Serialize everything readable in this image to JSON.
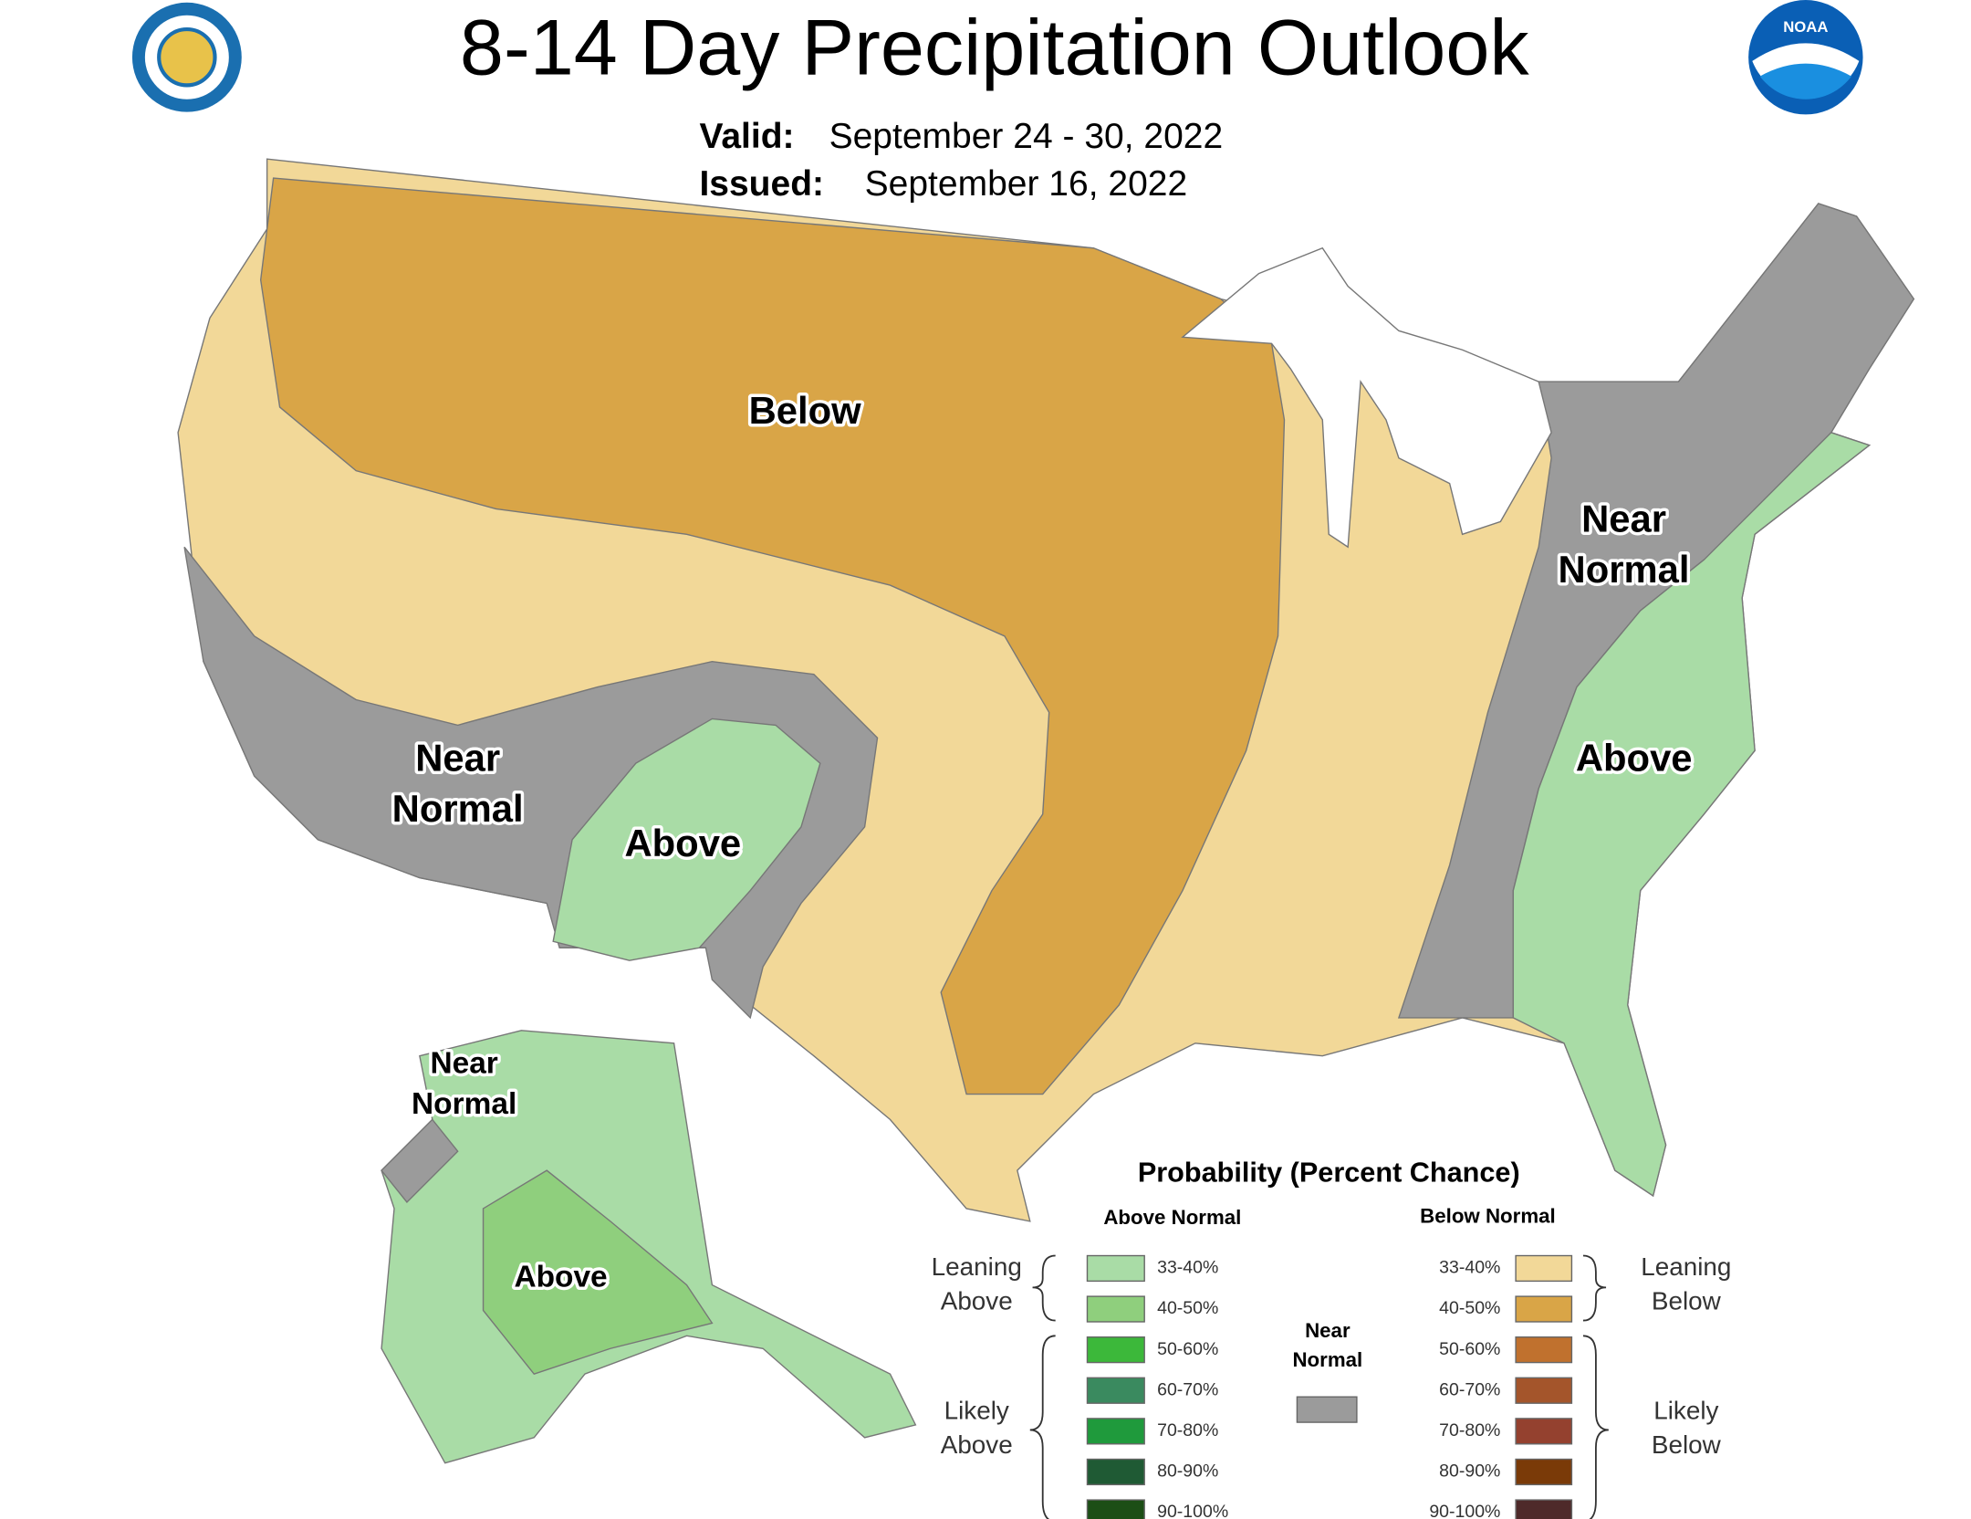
{
  "header": {
    "title": "8-14 Day Precipitation Outlook",
    "valid_label": "Valid:",
    "valid_dates": "September 24 - 30, 2022",
    "issued_label": "Issued:",
    "issued_date": "September 16, 2022",
    "logo_text": "NOAA"
  },
  "map_labels": [
    {
      "lines": [
        "Below"
      ]
    },
    {
      "lines": [
        "Near",
        "Normal"
      ]
    },
    {
      "lines": [
        "Above"
      ]
    },
    {
      "lines": [
        "Near",
        "Normal"
      ]
    },
    {
      "lines": [
        "Above"
      ]
    },
    {
      "lines": [
        "Near",
        "Normal"
      ]
    },
    {
      "lines": [
        "Above"
      ]
    }
  ],
  "legend": {
    "title": "Probability (Percent Chance)",
    "above_heading": "Above Normal",
    "below_heading": "Below Normal",
    "leaning_above": [
      "Leaning",
      "Above"
    ],
    "likely_above": [
      "Likely",
      "Above"
    ],
    "leaning_below": [
      "Leaning",
      "Below"
    ],
    "likely_below": [
      "Likely",
      "Below"
    ],
    "near_normal": [
      "Near",
      "Normal"
    ],
    "above_ranges": [
      "33-40%",
      "40-50%",
      "50-60%",
      "60-70%",
      "70-80%",
      "80-90%",
      "90-100%"
    ],
    "below_ranges": [
      "33-40%",
      "40-50%",
      "50-60%",
      "60-70%",
      "70-80%",
      "80-90%",
      "90-100%"
    ]
  }
}
